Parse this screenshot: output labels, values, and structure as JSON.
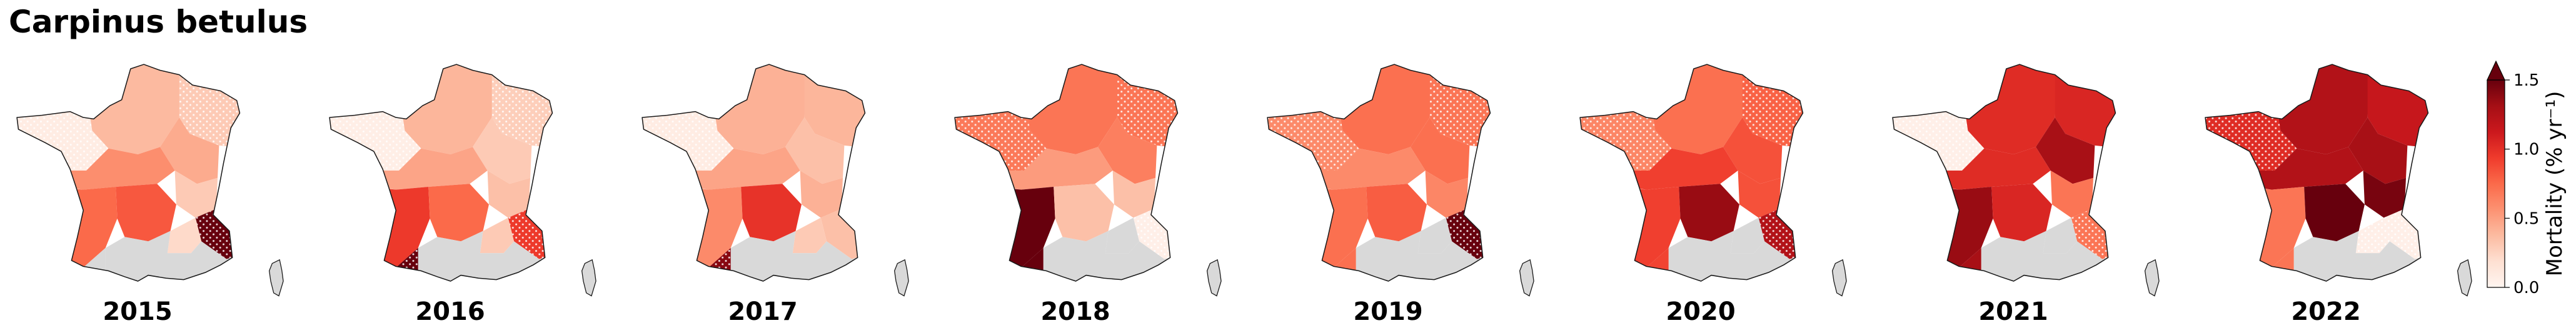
{
  "figure": {
    "title": "Carpinus betulus"
  },
  "chart_data": {
    "type": "choropleth-map",
    "title": "Carpinus betulus",
    "panels": [
      {
        "year": "2015",
        "regions": {
          "NW": 0.08,
          "N": 0.38,
          "NE": 0.3,
          "E": 0.45,
          "C": 0.58,
          "CE": 0.3,
          "SW": 0.75,
          "MC": 0.82,
          "ALP": 1.55,
          "SE": 0.22,
          "MED": null,
          "PYR": null,
          "COR": null
        },
        "hatched": [
          "NW",
          "NE",
          "ALP"
        ]
      },
      {
        "year": "2016",
        "regions": {
          "NW": 0.06,
          "N": 0.4,
          "NE": 0.28,
          "E": 0.3,
          "C": 0.48,
          "CE": 0.35,
          "SW": 0.95,
          "MC": 0.75,
          "ALP": 0.95,
          "SE": 0.3,
          "MED": null,
          "PYR": 1.5,
          "COR": null
        },
        "hatched": [
          "NW",
          "NE",
          "ALP",
          "PYR"
        ]
      },
      {
        "year": "2017",
        "regions": {
          "NW": 0.08,
          "N": 0.42,
          "NE": 0.4,
          "E": 0.35,
          "C": 0.48,
          "CE": 0.42,
          "SW": 0.6,
          "MC": 0.98,
          "ALP": 0.35,
          "SE": 0.3,
          "MED": null,
          "PYR": 1.4,
          "COR": null
        },
        "hatched": [
          "NW",
          "PYR"
        ]
      },
      {
        "year": "2018",
        "regions": {
          "NW": 0.68,
          "N": 0.7,
          "NE": 0.7,
          "E": 0.65,
          "C": 0.52,
          "CE": 0.35,
          "SW": 1.55,
          "MC": 0.35,
          "ALP": 0.05,
          "SE": null,
          "MED": null,
          "PYR": 1.55,
          "COR": null
        },
        "hatched": [
          "NW",
          "NE",
          "ALP"
        ]
      },
      {
        "year": "2019",
        "regions": {
          "NW": 0.6,
          "N": 0.72,
          "NE": 0.7,
          "E": 0.72,
          "C": 0.6,
          "CE": 0.62,
          "SW": 0.72,
          "MC": 0.8,
          "ALP": 1.55,
          "SE": null,
          "MED": null,
          "PYR": 0.72,
          "COR": null
        },
        "hatched": [
          "NW",
          "NE",
          "ALP"
        ]
      },
      {
        "year": "2020",
        "regions": {
          "NW": 0.62,
          "N": 0.72,
          "NE": 0.78,
          "E": 0.85,
          "C": 0.92,
          "CE": 0.85,
          "SW": 0.92,
          "MC": 1.35,
          "ALP": 1.25,
          "SE": null,
          "MED": null,
          "PYR": 0.9,
          "COR": null
        },
        "hatched": [
          "NW",
          "NE",
          "ALP"
        ]
      },
      {
        "year": "2021",
        "regions": {
          "NW": 0.05,
          "N": 1.02,
          "NE": 1.05,
          "E": 1.3,
          "C": 1.02,
          "CE": 0.7,
          "SW": 1.35,
          "MC": 1.05,
          "ALP": 0.7,
          "SE": null,
          "MED": null,
          "PYR": 1.3,
          "COR": null
        },
        "hatched": [
          "NW",
          "ALP"
        ]
      },
      {
        "year": "2022",
        "regions": {
          "NW": 1.02,
          "N": 1.25,
          "NE": 1.15,
          "E": 1.3,
          "C": 1.25,
          "CE": 1.45,
          "SW": 0.7,
          "MC": 1.55,
          "ALP": 0.05,
          "SE": 0.05,
          "MED": null,
          "PYR": 0.7,
          "COR": null
        },
        "hatched": [
          "NW",
          "ALP",
          "SE"
        ]
      }
    ],
    "colorbar": {
      "label": "Mortality (% yr⁻¹)",
      "vmin": 0.0,
      "vmax": 1.5,
      "extend": "max",
      "ticks": [
        "0.0",
        "0.5",
        "1.0",
        "1.5"
      ],
      "colormap": "Reds"
    },
    "colors": {
      "no_data": "#d9d9d9",
      "outline": "#1a1a1a",
      "reds": [
        "#fff5f0",
        "#fee0d2",
        "#fcbba1",
        "#fc9272",
        "#fb6a4a",
        "#ef3b2c",
        "#cb181d",
        "#a50f15",
        "#67000d"
      ]
    }
  }
}
